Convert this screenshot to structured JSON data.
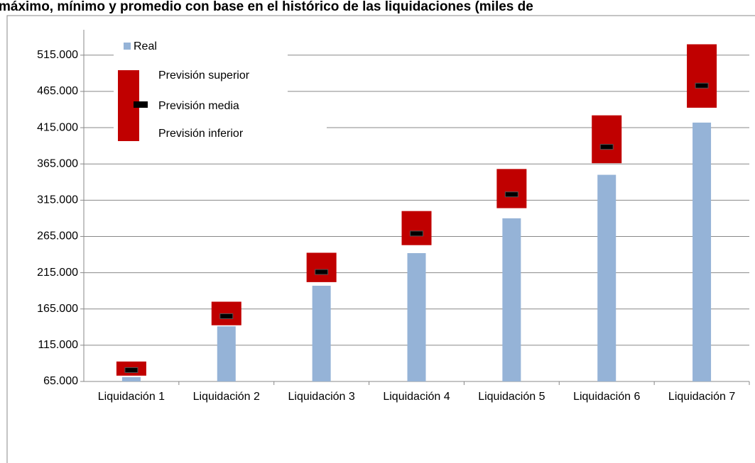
{
  "chart_data": {
    "type": "range-bar",
    "title": "máximo, mínimo y promedio con base en el histórico de las liquidaciones (miles de",
    "categories": [
      "Liquidación 1",
      "Liquidación 2",
      "Liquidación 3",
      "Liquidación 4",
      "Liquidación 5",
      "Liquidación 6",
      "Liquidación 7"
    ],
    "series": [
      {
        "name": "Real",
        "color": "#95b3d7",
        "values": [
          71000,
          141000,
          197000,
          242000,
          290000,
          350000,
          422000
        ]
      },
      {
        "name": "Previsión superior",
        "color": "#c00000",
        "values": [
          92500,
          175000,
          242500,
          300000,
          358000,
          432000,
          530000
        ]
      },
      {
        "name": "Previsión media",
        "color": "#000000",
        "values": [
          80700,
          155000,
          216000,
          269000,
          323000,
          388500,
          473000
        ]
      },
      {
        "name": "Previsión inferior",
        "color": "#c00000",
        "values": [
          73000,
          142500,
          202000,
          253000,
          304000,
          366000,
          442500
        ]
      }
    ],
    "ylim": [
      65000,
      550000
    ],
    "yticks": [
      {
        "value": 65000,
        "label": "65.000"
      },
      {
        "value": 115000,
        "label": "115.000"
      },
      {
        "value": 165000,
        "label": "165.000"
      },
      {
        "value": 215000,
        "label": "215.000"
      },
      {
        "value": 265000,
        "label": "265.000"
      },
      {
        "value": 315000,
        "label": "315.000"
      },
      {
        "value": 365000,
        "label": "365.000"
      },
      {
        "value": 415000,
        "label": "415.000"
      },
      {
        "value": 465000,
        "label": "465.000"
      },
      {
        "value": 515000,
        "label": "515.000"
      }
    ],
    "grid": true
  }
}
